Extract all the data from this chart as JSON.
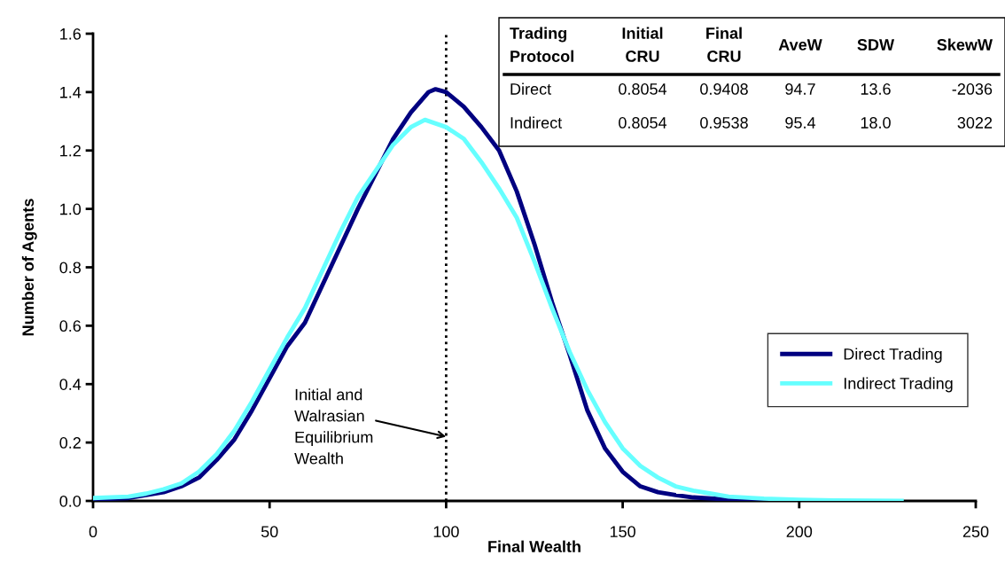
{
  "chart_data": {
    "type": "line",
    "xlabel": "Final Wealth",
    "ylabel": "Number of Agents",
    "xlim": [
      0,
      250
    ],
    "xticks": [
      0,
      50,
      100,
      150,
      200,
      250
    ],
    "ylim": [
      0,
      1.6
    ],
    "yticks": [
      {
        "value": 0,
        "label": "0.0"
      },
      {
        "value": 0.2,
        "label": "0.2"
      },
      {
        "value": 0.4,
        "label": "0.4"
      },
      {
        "value": 0.6,
        "label": "0.6"
      },
      {
        "value": 0.8,
        "label": "0.8"
      },
      {
        "value": 1.0,
        "label": "1.0"
      },
      {
        "value": 1.2,
        "label": "1.2"
      },
      {
        "value": 1.4,
        "label": "1.4"
      },
      {
        "value": 1.6,
        "label": "1.6"
      }
    ],
    "grid": false,
    "legend": "right",
    "marker": "none",
    "line_style": "solid",
    "series": [
      {
        "name": "Direct Trading",
        "color": "#000080",
        "x": [
          0,
          10,
          15,
          20,
          25,
          30,
          35,
          40,
          45,
          50,
          55,
          60,
          65,
          70,
          75,
          80,
          85,
          90,
          95,
          97,
          100,
          105,
          110,
          115,
          120,
          125,
          130,
          135,
          140,
          145,
          150,
          155,
          160,
          165,
          170,
          180,
          190,
          200
        ],
        "values": [
          0.005,
          0.01,
          0.02,
          0.03,
          0.05,
          0.08,
          0.14,
          0.21,
          0.31,
          0.42,
          0.53,
          0.61,
          0.74,
          0.87,
          1.0,
          1.12,
          1.24,
          1.33,
          1.4,
          1.41,
          1.4,
          1.35,
          1.28,
          1.2,
          1.06,
          0.88,
          0.68,
          0.5,
          0.31,
          0.18,
          0.1,
          0.05,
          0.03,
          0.02,
          0.012,
          0.005,
          0.002,
          0.0
        ]
      },
      {
        "name": "Indirect Trading",
        "color": "#66ffff",
        "x": [
          0,
          10,
          15,
          20,
          25,
          30,
          35,
          40,
          45,
          50,
          55,
          60,
          65,
          70,
          75,
          80,
          85,
          90,
          94,
          100,
          105,
          110,
          115,
          120,
          125,
          130,
          135,
          140,
          145,
          150,
          155,
          160,
          165,
          170,
          175,
          180,
          190,
          200,
          210,
          229
        ],
        "values": [
          0.01,
          0.015,
          0.025,
          0.04,
          0.06,
          0.1,
          0.16,
          0.24,
          0.34,
          0.45,
          0.56,
          0.66,
          0.79,
          0.92,
          1.04,
          1.13,
          1.22,
          1.28,
          1.305,
          1.28,
          1.24,
          1.16,
          1.07,
          0.97,
          0.82,
          0.66,
          0.51,
          0.38,
          0.27,
          0.18,
          0.12,
          0.08,
          0.05,
          0.035,
          0.025,
          0.015,
          0.008,
          0.004,
          0.002,
          0.0
        ]
      }
    ],
    "ref_lines": [
      {
        "axis": "x",
        "value": 100,
        "line_style": "dotted",
        "color": "#000000"
      }
    ],
    "annotations": [
      {
        "text": "Initial and\nWalrasian\nEquilibrium\nWealth",
        "x": 100,
        "y": 0.22
      },
      "Trading\nProtocol",
      "Initial\nCRU",
      "Final\nCRU",
      "AveW",
      "SDW",
      "SkewW",
      "Direct",
      "0.8054",
      "0.9408",
      "94.7",
      "13.6",
      "-2036",
      "Indirect",
      "0.8054",
      "0.9538",
      "95.4",
      "18.0",
      "3022"
    ]
  }
}
